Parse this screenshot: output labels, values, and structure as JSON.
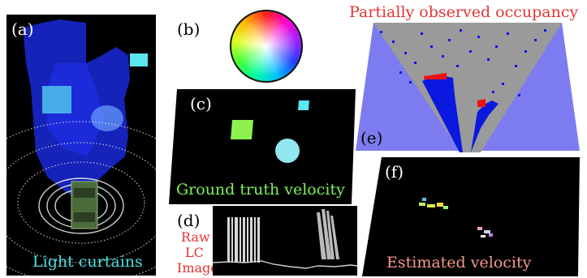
{
  "figure": {
    "panel_a": {
      "label": "(a)",
      "caption": "Light curtains"
    },
    "panel_b": {
      "label": "(b)"
    },
    "panel_c": {
      "label": "(c)",
      "caption": "Ground truth velocity"
    },
    "panel_d": {
      "label": "(d)",
      "side_text": [
        "Raw",
        "LC",
        "Image"
      ]
    },
    "panel_e": {
      "label": "(e)",
      "caption": "Partially observed occupancy"
    },
    "panel_f": {
      "label": "(f)",
      "caption": "Estimated velocity"
    }
  },
  "colors": {
    "caption_cyan": "#4de0e0",
    "caption_green": "#7cf25a",
    "caption_red": "#e53333",
    "caption_pink": "#f59a8a",
    "occupancy_gray": "#9a9a9a",
    "occupancy_blue": "#0a18e0",
    "background_violet": "#7c7cf0"
  }
}
